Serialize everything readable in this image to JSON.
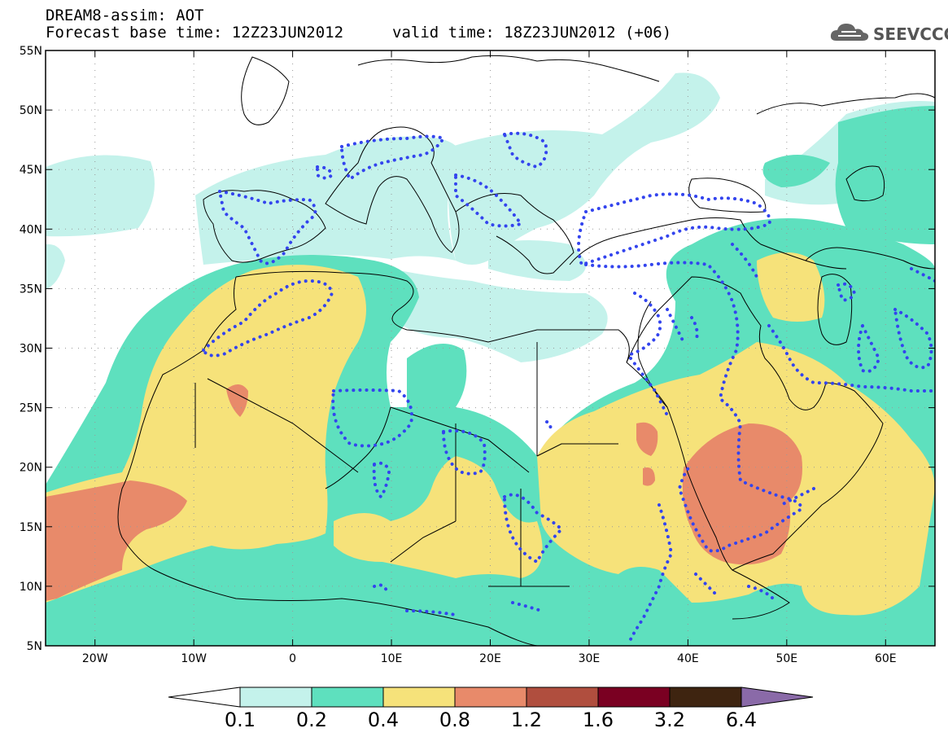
{
  "header": {
    "title": "DREAM8-assim: AOT",
    "base_time": "Forecast base time: 12Z23JUN2012",
    "valid_time": "valid time: 18Z23JUN2012 (+06)"
  },
  "logo": {
    "text": "SEEVCCC",
    "icon": "cloud-icon"
  },
  "map": {
    "lon_range": [
      -25,
      65
    ],
    "lat_range": [
      5,
      55
    ],
    "lat_ticks": [
      {
        "v": 55,
        "label": "55N"
      },
      {
        "v": 50,
        "label": "50N"
      },
      {
        "v": 45,
        "label": "45N"
      },
      {
        "v": 40,
        "label": "40N"
      },
      {
        "v": 35,
        "label": "35N"
      },
      {
        "v": 30,
        "label": "30N"
      },
      {
        "v": 25,
        "label": "25N"
      },
      {
        "v": 20,
        "label": "20N"
      },
      {
        "v": 15,
        "label": "15N"
      },
      {
        "v": 10,
        "label": "10N"
      },
      {
        "v": 5,
        "label": "5N"
      }
    ],
    "lon_ticks": [
      {
        "v": -20,
        "label": "20W"
      },
      {
        "v": -10,
        "label": "10W"
      },
      {
        "v": 0,
        "label": "0"
      },
      {
        "v": 10,
        "label": "10E"
      },
      {
        "v": 20,
        "label": "20E"
      },
      {
        "v": 30,
        "label": "30E"
      },
      {
        "v": 40,
        "label": "40E"
      },
      {
        "v": 50,
        "label": "50E"
      },
      {
        "v": 60,
        "label": "60E"
      }
    ],
    "grid": true,
    "colors": {
      "c1": "#c4f2eb",
      "c2": "#5ee0be",
      "c3": "#f6e27a",
      "c4": "#e88a6a",
      "c5": "#b04e3e",
      "c6": "#7a0022",
      "c7": "#3e2410",
      "c8": "#8a6aa8",
      "contour_line": "#3344ee",
      "coast": "#000000"
    }
  },
  "colorbar": {
    "labels": [
      "0.1",
      "0.2",
      "0.4",
      "0.8",
      "1.2",
      "1.6",
      "3.2",
      "6.4"
    ],
    "colors": [
      "#c4f2eb",
      "#5ee0be",
      "#f6e27a",
      "#e88a6a",
      "#b04e3e",
      "#7a0022",
      "#3e2410"
    ],
    "under_color": "#ffffff",
    "over_color": "#8a6aa8"
  }
}
